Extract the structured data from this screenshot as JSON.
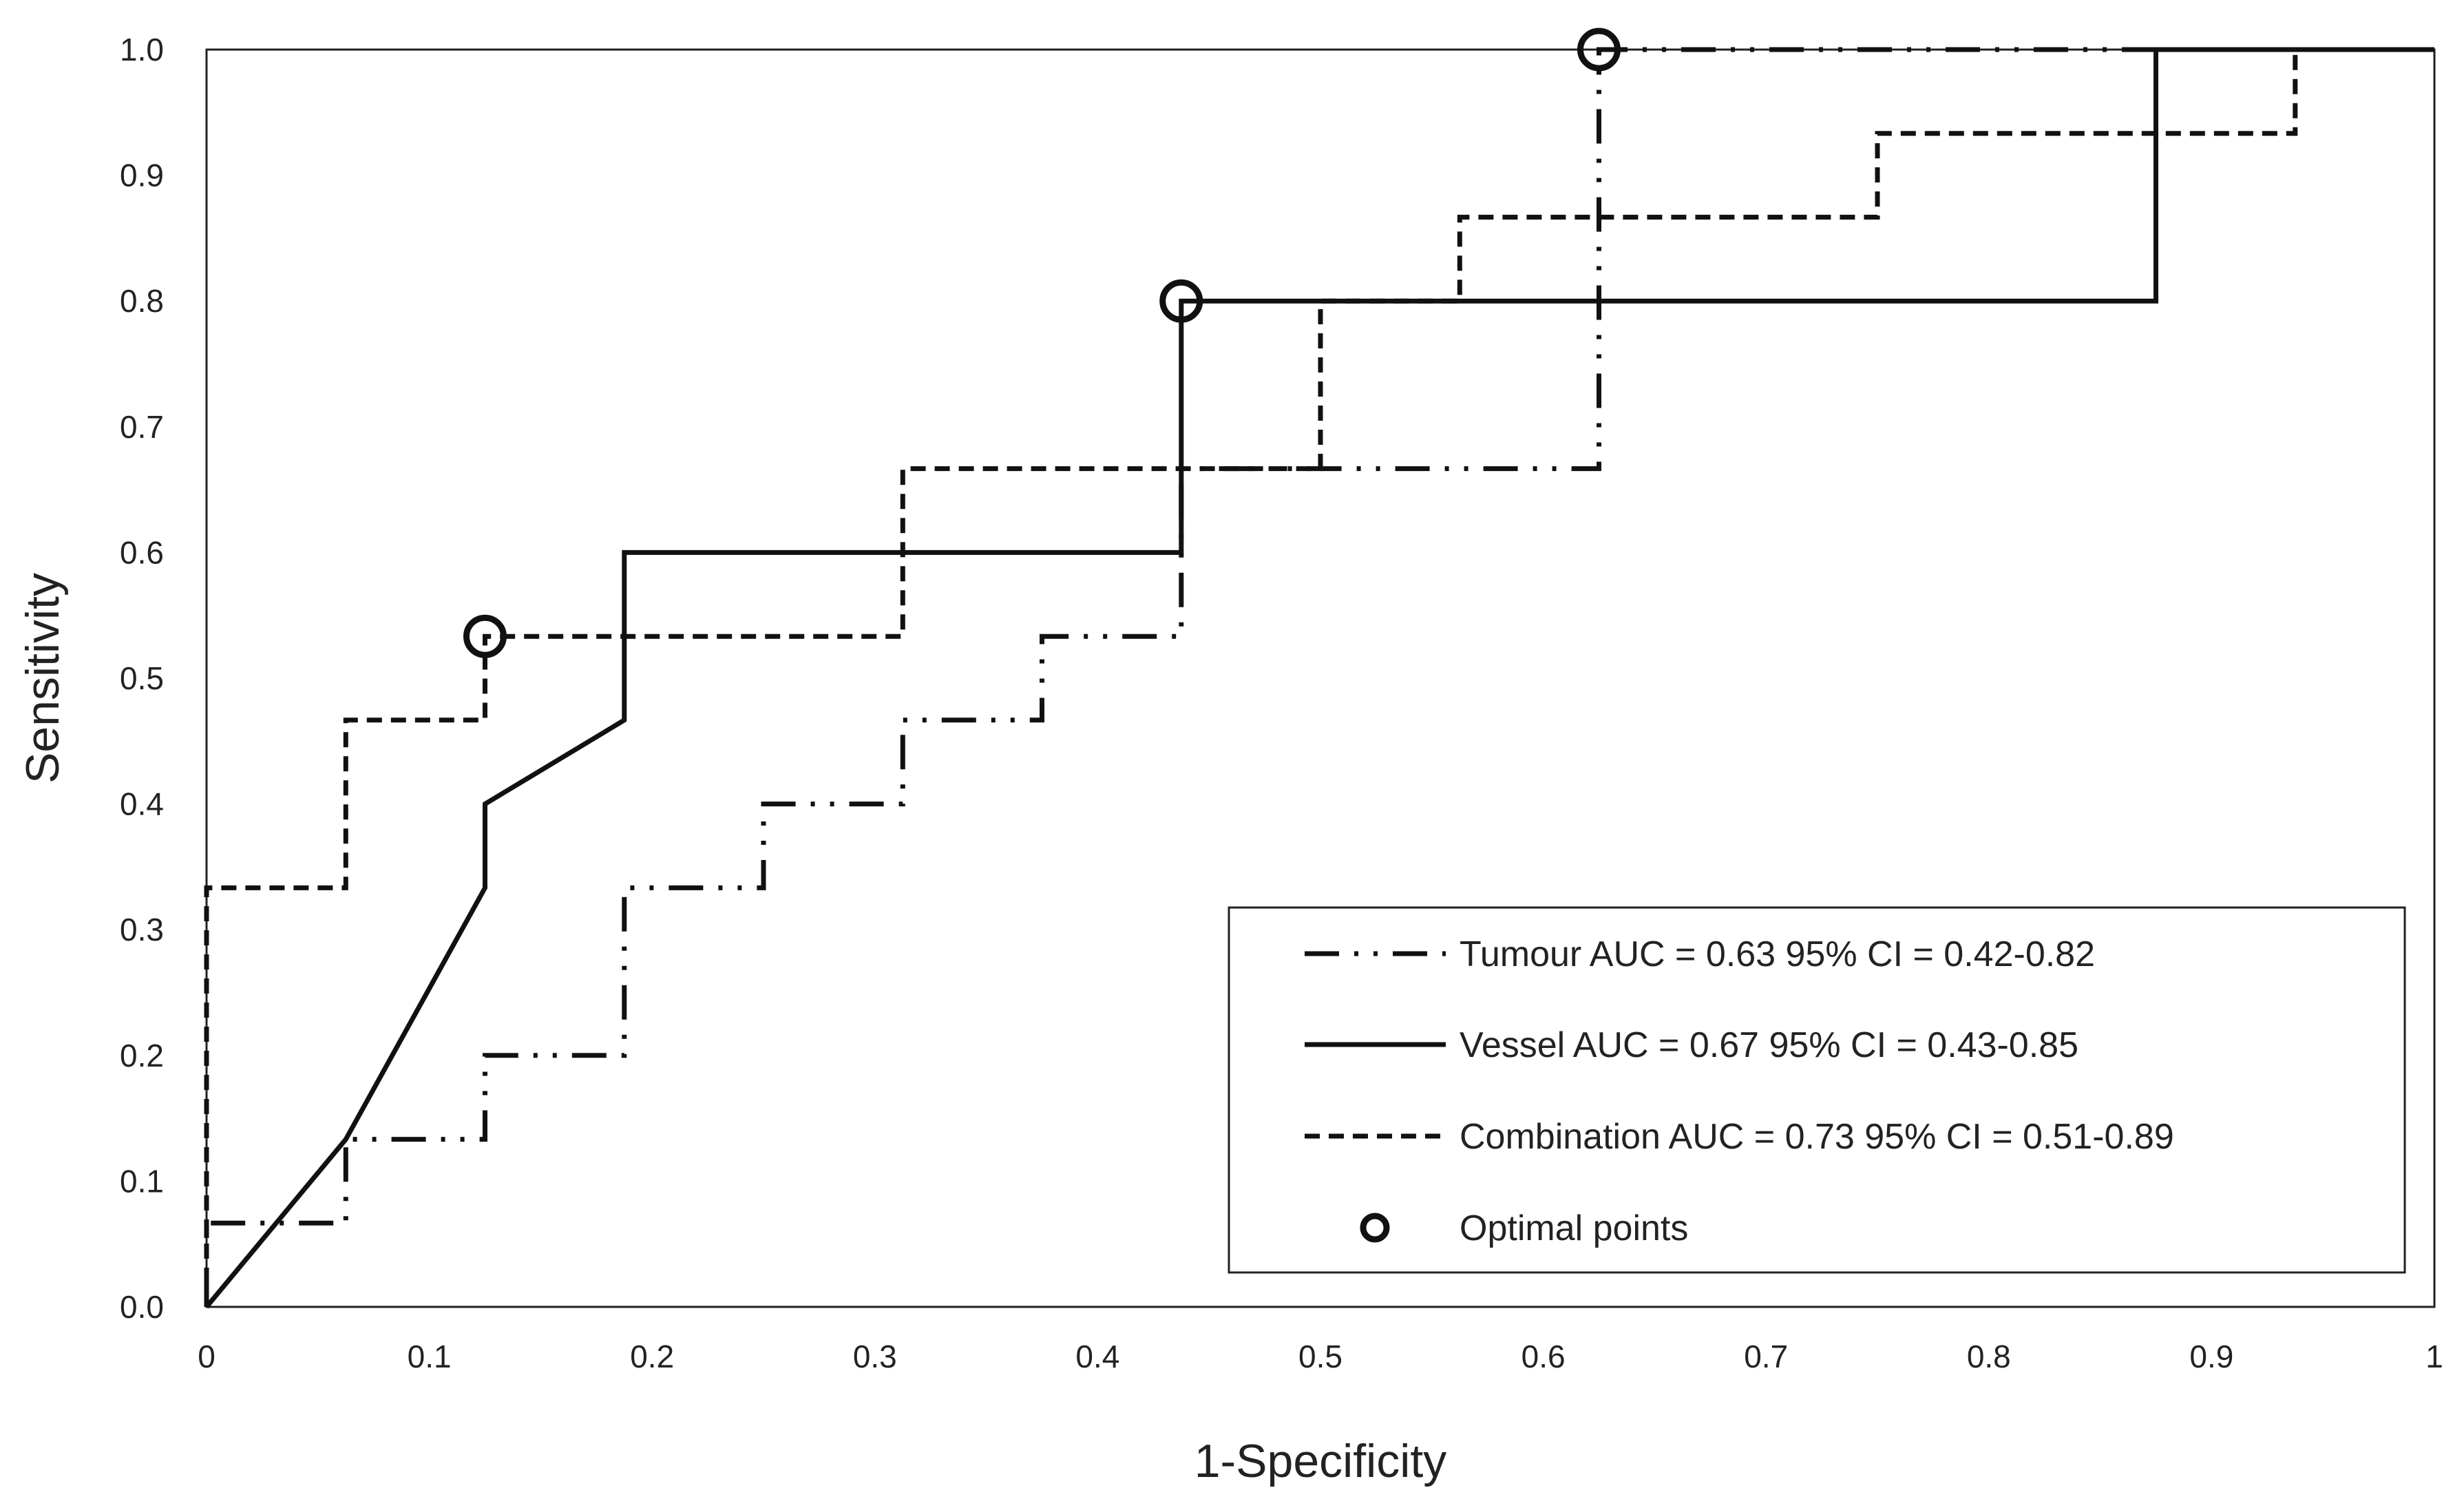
{
  "chart_data": {
    "type": "line",
    "title": "",
    "xlabel": "1-Specificity",
    "ylabel": "Sensitivity",
    "xlim": [
      0,
      1
    ],
    "ylim": [
      0,
      1
    ],
    "xticks": [
      "0",
      "0.1",
      "0.2",
      "0.3",
      "0.4",
      "0.5",
      "0.6",
      "0.7",
      "0.8",
      "0.9",
      "1"
    ],
    "yticks": [
      "0.0",
      "0.1",
      "0.2",
      "0.3",
      "0.4",
      "0.5",
      "0.6",
      "0.7",
      "0.8",
      "0.9",
      "1.0"
    ],
    "grid": false,
    "legend_position": "bottom-right",
    "series": [
      {
        "name": "Tumour AUC = 0.63 95% CI = 0.42-0.82",
        "style": "dash-dot-dot",
        "x": [
          0,
          0,
          0.0625,
          0.0625,
          0.125,
          0.125,
          0.1875,
          0.1875,
          0.25,
          0.25,
          0.3125,
          0.3125,
          0.375,
          0.375,
          0.4375,
          0.4375,
          0.5,
          0.5625,
          0.625,
          0.625,
          0.6875,
          0.75,
          0.8125,
          0.875,
          0.9375,
          1.0
        ],
        "y": [
          0,
          0.0667,
          0.0667,
          0.1333,
          0.1333,
          0.2,
          0.2,
          0.3333,
          0.3333,
          0.4,
          0.4,
          0.4667,
          0.4667,
          0.5333,
          0.5333,
          0.6667,
          0.6667,
          0.6667,
          0.6667,
          1.0,
          1.0,
          1.0,
          1.0,
          1.0,
          1.0,
          1.0
        ]
      },
      {
        "name": "Vessel AUC = 0.67 95% CI = 0.43-0.85",
        "style": "solid",
        "x": [
          0,
          0.0625,
          0.125,
          0.125,
          0.1875,
          0.1875,
          0.25,
          0.3125,
          0.375,
          0.4375,
          0.4375,
          0.5,
          0.5625,
          0.625,
          0.6875,
          0.75,
          0.8125,
          0.875,
          0.875,
          0.9375,
          1.0
        ],
        "y": [
          0,
          0.1333,
          0.3333,
          0.4,
          0.4667,
          0.6,
          0.6,
          0.6,
          0.6,
          0.6,
          0.8,
          0.8,
          0.8,
          0.8,
          0.8,
          0.8,
          0.8,
          0.8,
          1.0,
          1.0,
          1.0
        ]
      },
      {
        "name": "Combination AUC = 0.73 95% CI = 0.51-0.89",
        "style": "dashed",
        "x": [
          0,
          0,
          0.0625,
          0.0625,
          0.125,
          0.125,
          0.1875,
          0.25,
          0.3125,
          0.3125,
          0.375,
          0.4375,
          0.5,
          0.5,
          0.5625,
          0.5625,
          0.625,
          0.6875,
          0.75,
          0.75,
          0.8125,
          0.875,
          0.9375,
          0.9375,
          1.0
        ],
        "y": [
          0,
          0.3333,
          0.3333,
          0.4667,
          0.4667,
          0.5333,
          0.5333,
          0.5333,
          0.5333,
          0.6667,
          0.6667,
          0.6667,
          0.6667,
          0.8,
          0.8,
          0.8667,
          0.8667,
          0.8667,
          0.8667,
          0.9333,
          0.9333,
          0.9333,
          0.9333,
          1.0,
          1.0
        ]
      }
    ],
    "optimal_points": {
      "name": "Optimal points",
      "x": [
        0.125,
        0.4375,
        0.625
      ],
      "y": [
        0.5333,
        0.8,
        1.0
      ]
    }
  }
}
